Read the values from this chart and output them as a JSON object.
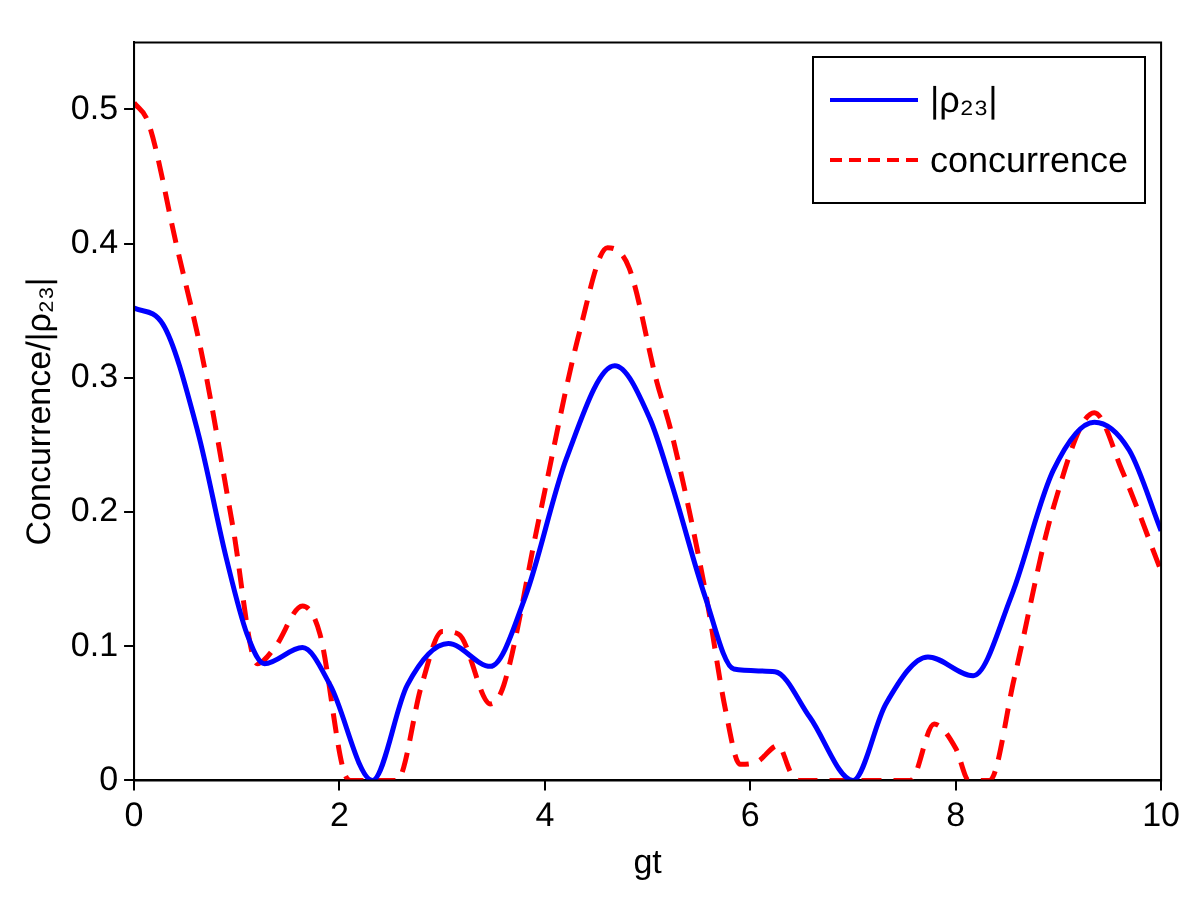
{
  "chart_data": {
    "type": "line",
    "xlabel": "gt",
    "ylabel": "Concurrence/|ρ₂₃|",
    "xlim": [
      0,
      10
    ],
    "xticks": [
      0,
      2,
      4,
      6,
      8,
      10
    ],
    "ylim": [
      0,
      0.55
    ],
    "yticks": [
      0,
      0.1,
      0.2,
      0.3,
      0.4,
      0.5
    ],
    "grid": false,
    "legend": "top right",
    "series": [
      {
        "name": "|ρ₂₃|",
        "color": "#0000ff",
        "line_style": "solid",
        "x": [
          0,
          0.28,
          0.62,
          0.9,
          1.1,
          1.27,
          1.64,
          1.91,
          2.32,
          2.66,
          3.06,
          3.47,
          3.81,
          4.21,
          4.68,
          5.02,
          5.23,
          5.56,
          5.84,
          6.24,
          6.58,
          7.0,
          7.32,
          7.73,
          8.17,
          8.54,
          8.95,
          9.35,
          9.69,
          10
        ],
        "values": [
          0.352,
          0.34,
          0.26,
          0.165,
          0.109,
          0.087,
          0.099,
          0.071,
          0,
          0.071,
          0.102,
          0.085,
          0.137,
          0.24,
          0.309,
          0.27,
          0.222,
          0.137,
          0.083,
          0.081,
          0.047,
          0,
          0.057,
          0.092,
          0.078,
          0.137,
          0.231,
          0.267,
          0.246,
          0.186
        ]
      },
      {
        "name": "concurrence",
        "color": "#ff0000",
        "line_style": "dashed",
        "x": [
          0,
          0.14,
          0.41,
          0.68,
          0.96,
          1.2,
          1.37,
          1.64,
          1.81,
          2.05,
          2.12,
          2.56,
          2.8,
          3.0,
          3.16,
          3.47,
          3.6,
          3.94,
          4.34,
          4.61,
          4.82,
          5.09,
          5.23,
          5.56,
          5.76,
          5.9,
          6.07,
          6.27,
          6.4,
          6.48,
          7.56,
          7.79,
          8.0,
          8.13,
          8.33,
          8.57,
          8.95,
          9.35,
          9.62,
          10
        ],
        "values": [
          0.505,
          0.49,
          0.4,
          0.31,
          0.19,
          0.087,
          0.099,
          0.13,
          0.109,
          0.005,
          0,
          0,
          0.071,
          0.111,
          0.109,
          0.057,
          0.071,
          0.194,
          0.335,
          0.397,
          0.382,
          0.297,
          0.26,
          0.142,
          0.052,
          0.012,
          0.014,
          0.026,
          0.005,
          0,
          0,
          0.042,
          0.024,
          0,
          0,
          0.076,
          0.203,
          0.274,
          0.231,
          0.156
        ]
      }
    ]
  }
}
